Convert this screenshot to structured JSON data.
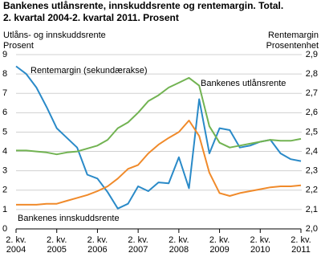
{
  "chart_data": {
    "type": "line",
    "title": "Bankenes utlånsrente, innskuddsrente og rentemargin. Total.",
    "subtitle": "2. kvartal 2004-2. kvartal 2011. Prosent",
    "y_label": "Utlåns- og innskuddsrente",
    "y_unit": "Prosent",
    "y2_label": "Rentemargin",
    "y2_unit": "Prosentenhet",
    "categories": [
      "2. kv. 2004",
      null,
      null,
      null,
      "2. kv. 2005",
      null,
      null,
      null,
      "2. kv. 2006",
      null,
      null,
      null,
      "2. kv. 2007",
      null,
      null,
      null,
      "2. kv. 2008",
      null,
      null,
      null,
      "2. kv. 2009",
      null,
      null,
      null,
      "2. kv. 2010",
      null,
      null,
      null,
      "2. kv. 2011"
    ],
    "ylim": [
      0,
      9
    ],
    "yticks": [
      0,
      1,
      2,
      3,
      4,
      5,
      6,
      7,
      8,
      9
    ],
    "y2lim": [
      2.0,
      2.9
    ],
    "y2ticks": [
      {
        "value": 2.0,
        "label": "2,0"
      },
      {
        "value": 2.1,
        "label": "2,1"
      },
      {
        "value": 2.2,
        "label": "2,2"
      },
      {
        "value": 2.3,
        "label": "2,3"
      },
      {
        "value": 2.4,
        "label": "2,4"
      },
      {
        "value": 2.5,
        "label": "2,5"
      },
      {
        "value": 2.6,
        "label": "2,6"
      },
      {
        "value": 2.7,
        "label": "2,7"
      },
      {
        "value": 2.8,
        "label": "2,8"
      },
      {
        "value": 2.9,
        "label": "2,9"
      }
    ],
    "grid": true,
    "series": [
      {
        "name": "Rentemargin (sekundærakse)",
        "color": "#2a8ac8",
        "axis": "y2",
        "values": [
          2.84,
          2.8,
          2.73,
          2.63,
          2.52,
          2.47,
          2.42,
          2.28,
          2.26,
          2.19,
          2.105,
          2.13,
          2.22,
          2.195,
          2.24,
          2.235,
          2.37,
          2.21,
          2.67,
          2.39,
          2.52,
          2.51,
          2.42,
          2.43,
          2.45,
          2.46,
          2.39,
          2.36,
          2.35
        ]
      },
      {
        "name": "Bankenes utlånsrente",
        "color": "#72b352",
        "values": [
          4.05,
          4.05,
          4.0,
          3.95,
          3.85,
          3.95,
          4.0,
          4.15,
          4.3,
          4.6,
          5.2,
          5.5,
          6.0,
          6.6,
          6.9,
          7.3,
          7.55,
          7.8,
          7.4,
          5.3,
          4.45,
          4.2,
          4.3,
          4.4,
          4.5,
          4.6,
          4.55,
          4.55,
          4.65
        ]
      },
      {
        "name": "Bankenes innskuddsrente",
        "color": "#f08a2a",
        "values": [
          1.25,
          1.25,
          1.25,
          1.3,
          1.3,
          1.45,
          1.6,
          1.75,
          1.95,
          2.2,
          2.6,
          3.1,
          3.3,
          3.9,
          4.35,
          4.7,
          5.0,
          5.6,
          4.8,
          2.9,
          1.85,
          1.7,
          1.85,
          1.95,
          2.05,
          2.15,
          2.2,
          2.2,
          2.25
        ]
      }
    ]
  }
}
